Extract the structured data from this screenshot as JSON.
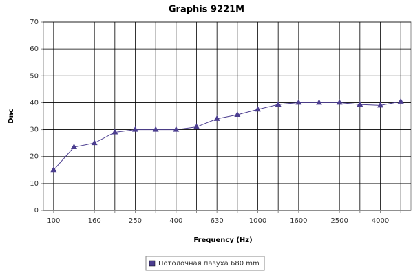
{
  "chart_data": {
    "type": "line",
    "title": "Graphis 9221M",
    "x_label": "Frequency (Hz)",
    "y_label": "Dnc",
    "categories": [
      "100",
      null,
      "160",
      null,
      "250",
      null,
      "400",
      null,
      "630",
      null,
      "1000",
      null,
      "1600",
      null,
      "2500",
      null,
      "4000",
      null
    ],
    "series": [
      {
        "name": "Потолочная пазуха 680 mm",
        "color": "#4b3d8f",
        "values": [
          15,
          23.5,
          25,
          29,
          30,
          30,
          30,
          31,
          34,
          35.5,
          37.5,
          39.3,
          40,
          40,
          40,
          39.3,
          39,
          40.4
        ]
      }
    ],
    "ylim": [
      0,
      70
    ],
    "yticks": [
      0,
      10,
      20,
      30,
      40,
      50,
      60,
      70
    ],
    "grid": true,
    "legend": "bottom"
  }
}
